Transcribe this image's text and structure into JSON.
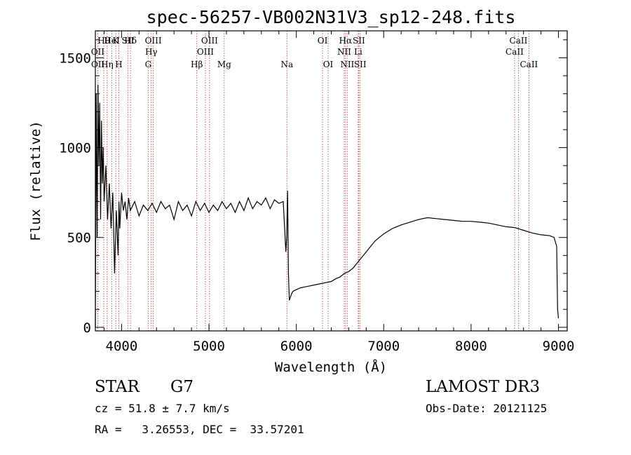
{
  "chart_data": {
    "type": "line",
    "title": "spec-56257-VB002N31V3_sp12-248.fits",
    "xlabel": "Wavelength (Å)",
    "ylabel": "Flux (relative)",
    "xlim": [
      3700,
      9100
    ],
    "ylim": [
      -20,
      1650
    ],
    "xticks": [
      4000,
      5000,
      6000,
      7000,
      8000,
      9000
    ],
    "yticks": [
      0,
      500,
      1000,
      1500
    ],
    "grid": false,
    "legend": "none",
    "line_color": "#000000",
    "marker_color": "#c0504d",
    "series": [
      {
        "x": [
          3700,
          3710,
          3720,
          3730,
          3740,
          3750,
          3760,
          3770,
          3780,
          3790,
          3800,
          3820,
          3840,
          3860,
          3880,
          3900,
          3920,
          3940,
          3960,
          3970,
          3980,
          4000,
          4020,
          4040,
          4060,
          4080,
          4100,
          4150,
          4200,
          4250,
          4300,
          4350,
          4400,
          4450,
          4500,
          4550,
          4600,
          4650,
          4700,
          4750,
          4800,
          4850,
          4900,
          4950,
          5000,
          5050,
          5100,
          5150,
          5200,
          5250,
          5300,
          5350,
          5400,
          5450,
          5500,
          5550,
          5600,
          5650,
          5700,
          5750,
          5800,
          5850,
          5880,
          5890,
          5900,
          5910,
          5920,
          5940,
          5960,
          6000,
          6050,
          6100,
          6150,
          6200,
          6250,
          6300,
          6350,
          6400,
          6450,
          6500,
          6550,
          6600,
          6650,
          6700,
          6750,
          6800,
          6850,
          6900,
          6950,
          7000,
          7100,
          7200,
          7300,
          7400,
          7500,
          7600,
          7700,
          7800,
          7900,
          8000,
          8100,
          8200,
          8300,
          8400,
          8500,
          8600,
          8700,
          8800,
          8900,
          8950,
          8980,
          8990,
          9000
        ],
        "y": [
          0,
          1300,
          500,
          1350,
          900,
          1250,
          600,
          1150,
          800,
          1000,
          700,
          900,
          600,
          800,
          550,
          750,
          300,
          650,
          400,
          700,
          550,
          750,
          650,
          700,
          600,
          720,
          650,
          700,
          620,
          680,
          650,
          690,
          640,
          700,
          660,
          680,
          600,
          700,
          650,
          680,
          620,
          700,
          650,
          690,
          640,
          680,
          650,
          700,
          660,
          690,
          640,
          700,
          650,
          720,
          660,
          700,
          680,
          720,
          660,
          710,
          690,
          700,
          420,
          500,
          760,
          300,
          150,
          180,
          200,
          210,
          220,
          225,
          230,
          235,
          240,
          245,
          250,
          255,
          270,
          280,
          300,
          310,
          330,
          360,
          390,
          420,
          450,
          480,
          500,
          520,
          550,
          570,
          585,
          600,
          610,
          605,
          600,
          595,
          590,
          590,
          585,
          580,
          570,
          560,
          555,
          540,
          525,
          515,
          510,
          500,
          450,
          100,
          50
        ]
      }
    ],
    "lines": {
      "row1": [
        {
          "label": "Hθ",
          "x": 3797
        },
        {
          "label": "Hδ",
          "x": 4102
        },
        {
          "label": "OIII",
          "x": 4363
        },
        {
          "label": "OIII",
          "x": 5007
        },
        {
          "label": "OI",
          "x": 6300
        },
        {
          "label": "Hα",
          "x": 6563
        },
        {
          "label": "SII",
          "x": 6716
        },
        {
          "label": "CaII",
          "x": 8542
        }
      ],
      "row1b": [
        {
          "label": "K",
          "x": 3934
        },
        {
          "label": "HeI",
          "x": 3889
        },
        {
          "label": "SII",
          "x": 4072
        }
      ],
      "row2": [
        {
          "label": "OII",
          "x": 3727
        },
        {
          "label": "Hγ",
          "x": 4340
        },
        {
          "label": "OIII",
          "x": 4959
        },
        {
          "label": "NII",
          "x": 6548
        },
        {
          "label": "Li",
          "x": 6708
        },
        {
          "label": "CaII",
          "x": 8498
        }
      ],
      "row3": [
        {
          "label": "OII",
          "x": 3729
        },
        {
          "label": "Hη",
          "x": 3835
        },
        {
          "label": "H",
          "x": 3969
        },
        {
          "label": "G",
          "x": 4305
        },
        {
          "label": "Hβ",
          "x": 4861
        },
        {
          "label": "Mg",
          "x": 5175
        },
        {
          "label": "Na",
          "x": 5893
        },
        {
          "label": "OI",
          "x": 6364
        },
        {
          "label": "NII",
          "x": 6583
        },
        {
          "label": "SII",
          "x": 6731
        },
        {
          "label": "CaII",
          "x": 8662
        }
      ]
    }
  },
  "info": {
    "class": "STAR",
    "subclass": "G7",
    "survey": "LAMOST DR3",
    "cz": "cz = 51.8 ± 7.7 km/s",
    "obs_date": "Obs-Date: 20121125",
    "radec": "RA =   3.26553, DEC =  33.57201"
  }
}
